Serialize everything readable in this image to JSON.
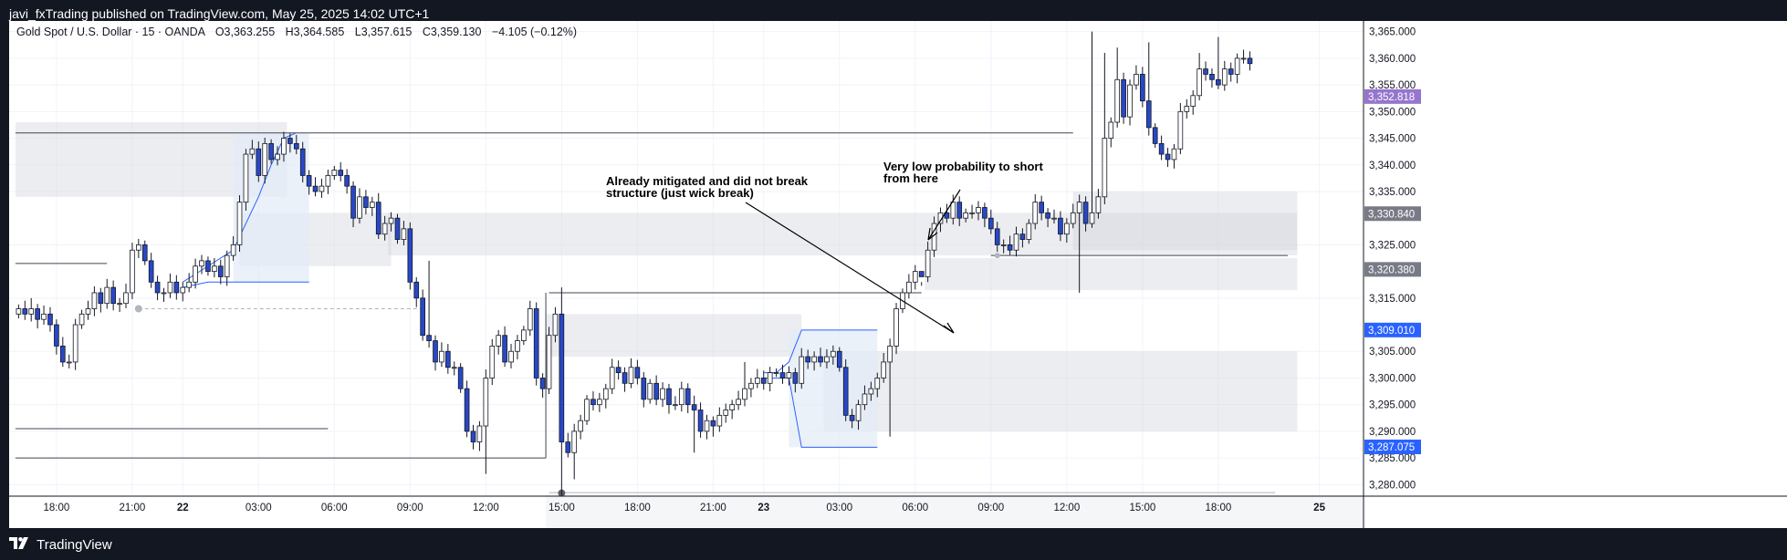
{
  "header": {
    "publish_text": "javi_fxTrading published on TradingView.com, May 25, 2025 14:02 UTC+1"
  },
  "footer": {
    "brand": "TradingView",
    "logo_icon": "tradingview-logo-icon"
  },
  "chart_data": {
    "type": "candlestick",
    "legend": {
      "symbol": "Gold Spot / U.S. Dollar · 15 · OANDA",
      "open": "O3,363.255",
      "high": "H3,364.585",
      "low": "L3,357.615",
      "close": "C3,359.130",
      "change": "−4.105 (−0.12%)"
    },
    "ylim": [
      3278,
      3367
    ],
    "y_ticks": [
      {
        "v": 3365,
        "label": "3,365.000"
      },
      {
        "v": 3360,
        "label": "3,360.000"
      },
      {
        "v": 3355,
        "label": "3,355.000"
      },
      {
        "v": 3350,
        "label": "3,350.000"
      },
      {
        "v": 3345,
        "label": "3,345.000"
      },
      {
        "v": 3340,
        "label": "3,340.000"
      },
      {
        "v": 3335,
        "label": "3,335.000"
      },
      {
        "v": 3325,
        "label": "3,325.000"
      },
      {
        "v": 3315,
        "label": "3,315.000"
      },
      {
        "v": 3305,
        "label": "3,305.000"
      },
      {
        "v": 3300,
        "label": "3,300.000"
      },
      {
        "v": 3295,
        "label": "3,295.000"
      },
      {
        "v": 3290,
        "label": "3,290.000"
      },
      {
        "v": 3285,
        "label": "3,285.000"
      },
      {
        "v": 3280,
        "label": "3,280.000"
      }
    ],
    "price_tags": [
      {
        "v": 3352.818,
        "label": "3,352.818",
        "color": "#9575cd"
      },
      {
        "v": 3330.84,
        "label": "3,330.840",
        "color": "#787b86"
      },
      {
        "v": 3320.38,
        "label": "3,320.380",
        "color": "#787b86"
      },
      {
        "v": 3309.01,
        "label": "3,309.010",
        "color": "#2962ff"
      },
      {
        "v": 3287.075,
        "label": "3,287.075",
        "color": "#2962ff"
      }
    ],
    "x_ticks": [
      {
        "t": 6,
        "label": "18:00",
        "bold": false
      },
      {
        "t": 18,
        "label": "21:00",
        "bold": false
      },
      {
        "t": 26,
        "label": "22",
        "bold": true
      },
      {
        "t": 38,
        "label": "03:00",
        "bold": false
      },
      {
        "t": 50,
        "label": "06:00",
        "bold": false
      },
      {
        "t": 62,
        "label": "09:00",
        "bold": false
      },
      {
        "t": 74,
        "label": "12:00",
        "bold": false
      },
      {
        "t": 86,
        "label": "15:00",
        "bold": false
      },
      {
        "t": 98,
        "label": "18:00",
        "bold": false
      },
      {
        "t": 110,
        "label": "21:00",
        "bold": false
      },
      {
        "t": 118,
        "label": "23",
        "bold": true
      },
      {
        "t": 130,
        "label": "03:00",
        "bold": false
      },
      {
        "t": 142,
        "label": "06:00",
        "bold": false
      },
      {
        "t": 154,
        "label": "09:00",
        "bold": false
      },
      {
        "t": 166,
        "label": "12:00",
        "bold": false
      },
      {
        "t": 178,
        "label": "15:00",
        "bold": false
      },
      {
        "t": 190,
        "label": "18:00",
        "bold": false
      },
      {
        "t": 206,
        "label": "25",
        "bold": true
      }
    ],
    "x_range": [
      -1.5,
      213
    ],
    "closes": [
      3313,
      3312,
      3313,
      3311,
      3312,
      3310,
      3306,
      3303,
      3303,
      3310,
      3312,
      3313,
      3316,
      3314,
      3317,
      3314,
      3314,
      3316,
      3324,
      3325,
      3322,
      3318,
      3316,
      3316,
      3318,
      3316,
      3317,
      3318,
      3321,
      3322,
      3320,
      3321,
      3319,
      3323,
      3325,
      3333,
      3342,
      3343,
      3338,
      3344,
      3341,
      3342,
      3345,
      3344,
      3343,
      3338,
      3336,
      3335,
      3336,
      3338,
      3339,
      3338,
      3336,
      3330,
      3334,
      3332,
      3333,
      3327,
      3329,
      3330,
      3326,
      3328,
      3318,
      3315,
      3308,
      3307,
      3303,
      3305,
      3302,
      3302,
      3298,
      3290,
      3288,
      3291,
      3300,
      3306,
      3308,
      3303,
      3305,
      3307,
      3309,
      3313,
      3300,
      3298,
      3308,
      3312,
      3288,
      3286,
      3290,
      3292,
      3296,
      3295,
      3296,
      3298,
      3302,
      3301,
      3299,
      3302,
      3300,
      3296,
      3299,
      3296,
      3298,
      3295,
      3295,
      3298,
      3295,
      3294,
      3290,
      3292,
      3291,
      3293,
      3294,
      3295,
      3296,
      3298,
      3299,
      3300,
      3299,
      3301,
      3301,
      3300,
      3301,
      3299,
      3304,
      3303,
      3304,
      3303,
      3304,
      3305,
      3302,
      3293,
      3292,
      3295,
      3297,
      3298,
      3300,
      3303,
      3306,
      3313,
      3316,
      3318,
      3320,
      3319,
      3324,
      3329,
      3331,
      3330,
      3333,
      3330,
      3331,
      3331,
      3332,
      3330,
      3328,
      3325,
      3325,
      3324,
      3327,
      3326,
      3329,
      3333,
      3331,
      3330,
      3330,
      3327,
      3329,
      3331,
      3333,
      3329,
      3331,
      3334,
      3345,
      3348,
      3356,
      3349,
      3355,
      3357,
      3352,
      3347,
      3344,
      3342,
      3341,
      3343,
      3350,
      3351,
      3353,
      3358,
      3357,
      3356,
      3355,
      3358,
      3357,
      3360,
      3360,
      3359
    ],
    "wick_highs": {
      "170": 3365,
      "172": 3361,
      "174": 3362,
      "179": 3363,
      "187": 3361,
      "190": 3364,
      "65": 3322,
      "86": 3317,
      "115": 3303,
      "143": 3318,
      "2": 3315
    },
    "wick_lows": {
      "74": 3282,
      "86": 3278,
      "88": 3281,
      "107": 3286,
      "138": 3289,
      "168": 3316,
      "110": 3289
    },
    "annotations": [
      {
        "text": [
          "Already mitigated and did not break",
          "structure (just wick break)"
        ]
      },
      {
        "text": [
          "Very low probability to short",
          "from here"
        ]
      }
    ],
    "zones": [
      {
        "t0": -0.5,
        "t1": 42.5,
        "p0": 3334,
        "p1": 3348
      },
      {
        "t0": 35,
        "t1": 59,
        "p0": 3321,
        "p1": 3331
      },
      {
        "t0": 58.5,
        "t1": 202.5,
        "p0": 3323,
        "p1": 3331
      },
      {
        "t0": 83.5,
        "t1": 124,
        "p0": 3304,
        "p1": 3312
      },
      {
        "t0": 127.5,
        "t1": 202.5,
        "p0": 3290,
        "p1": 3305
      },
      {
        "t0": 143.5,
        "t1": 202.5,
        "p0": 3316.5,
        "p1": 3322.5
      },
      {
        "t0": 167,
        "t1": 202.5,
        "p0": 3324,
        "p1": 3335
      }
    ],
    "hlines": [
      {
        "t0": -0.5,
        "t1": 167,
        "p": 3346
      },
      {
        "t0": -0.5,
        "t1": 14,
        "p": 3321.5
      },
      {
        "t0": -0.5,
        "t1": 83.5,
        "p": 3285
      },
      {
        "t0": -0.5,
        "t1": 49,
        "p": 3290.5
      },
      {
        "t0": 84,
        "t1": 143,
        "p": 3316
      },
      {
        "t0": 154,
        "t1": 201,
        "p": 3323
      },
      {
        "t0": 84,
        "t1": 199,
        "p": 3278.5
      }
    ]
  }
}
